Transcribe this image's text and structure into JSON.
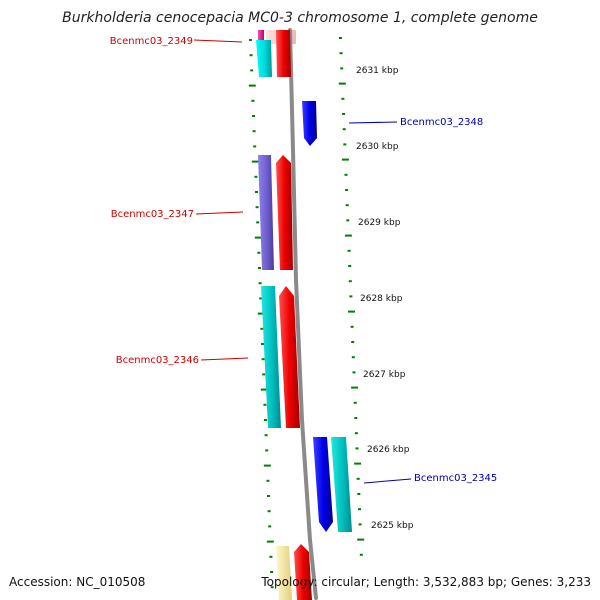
{
  "title": "Burkholderia cenocepacia MC0-3 chromosome 1, complete genome",
  "footer": {
    "accession": "Accession: NC_010508",
    "topology": "Topology: circular; Length: 3,532,883 bp; Genes: 3,233"
  },
  "colors": {
    "backbone": "#888888",
    "tick": "#008000",
    "label_left": "#cc0000",
    "label_right": "#0000aa",
    "cyan": "#00e5e5",
    "teal": "#00c8c8",
    "red": "#ee0000",
    "blue": "#0000ee",
    "purple": "#7060d0",
    "magenta": "#ee1090",
    "yellow": "#f2e6a0"
  },
  "scale_labels": [
    "2631 kbp",
    "2630 kbp",
    "2629 kbp",
    "2628 kbp",
    "2627 kbp",
    "2626 kbp",
    "2625 kbp"
  ],
  "gene_labels": {
    "left": [
      "Bcenmc03_2349",
      "Bcenmc03_2347",
      "Bcenmc03_2346"
    ],
    "right": [
      "Bcenmc03_2348",
      "Bcenmc03_2345"
    ]
  }
}
